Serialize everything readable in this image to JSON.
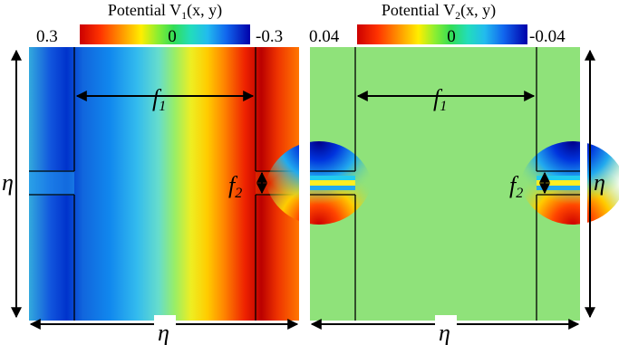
{
  "panels": [
    {
      "title_main": "Potential V",
      "title_sub": "1",
      "title_tail": "(x, y)",
      "colorbar_min": "0.3",
      "colorbar_mid": "0",
      "colorbar_max": "-0.3"
    },
    {
      "title_main": "Potential V",
      "title_sub": "2",
      "title_tail": "(x, y)",
      "colorbar_min": "0.04",
      "colorbar_mid": "0",
      "colorbar_max": "-0.04"
    }
  ],
  "labels": {
    "eta": "η",
    "f": "f",
    "sub1": "1",
    "sub2": "2"
  },
  "colormap": [
    "#cc0000",
    "#ff3300",
    "#ff9900",
    "#ffee00",
    "#99ee33",
    "#44dd55",
    "#22ddaa",
    "#22ccee",
    "#1177ee",
    "#0022cc",
    "#000088"
  ],
  "field_v2_background": "#8fe27a",
  "line_color": "#000000"
}
